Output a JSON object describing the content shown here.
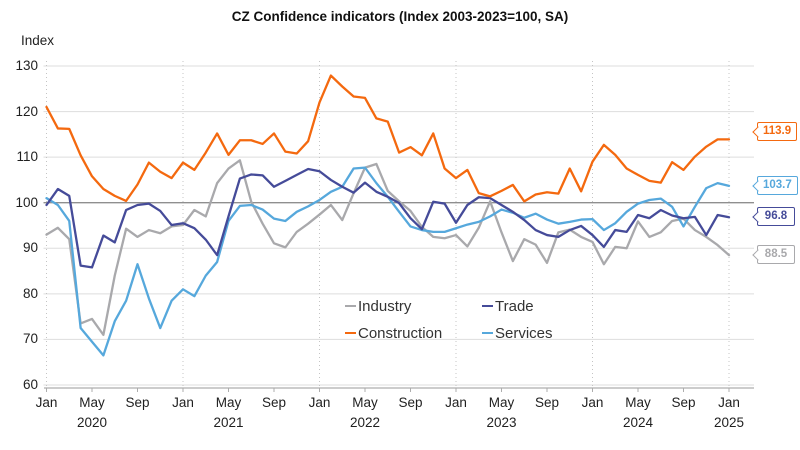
{
  "title": "CZ Confidence indicators (Index 2003-2023=100, SA)",
  "y_axis_label": "Index",
  "chart_data": {
    "type": "line",
    "x_range": "Jan 2020 - Jan 2025 (monthly, 61 points)",
    "x_tick_labels": [
      "Jan",
      "May",
      "Sep",
      "Jan",
      "May",
      "Sep",
      "Jan",
      "May",
      "Sep",
      "Jan",
      "May",
      "Sep",
      "Jan",
      "May",
      "Sep",
      "Jan"
    ],
    "years": [
      "2020",
      "2021",
      "2022",
      "2023",
      "2024",
      "2025"
    ],
    "y_ticks": [
      60,
      70,
      80,
      90,
      100,
      110,
      120,
      130
    ],
    "ylim": [
      60,
      130
    ],
    "reference_line": 100,
    "grid": "horizontal solid + vertical dotted at each January",
    "legend_position": "inside bottom center, 2 columns",
    "series": [
      {
        "name": "Industry",
        "color": "#A9A9AC",
        "end_label": "88.5",
        "values": [
          93,
          94.5,
          92,
          73.5,
          74.5,
          71,
          84,
          94.3,
          92.5,
          94,
          93.3,
          94.8,
          95.1,
          98.4,
          97,
          104.3,
          107.5,
          109.3,
          100.2,
          95.4,
          91.1,
          90.2,
          93.6,
          95.4,
          97.4,
          99.5,
          96.2,
          102.1,
          107.7,
          108.5,
          102.6,
          100.3,
          98.2,
          94.7,
          92.5,
          92.2,
          92.9,
          90.4,
          94.5,
          100.3,
          93.5,
          87.2,
          92,
          90.8,
          86.8,
          93.5,
          94.1,
          92.5,
          91.4,
          86.5,
          90.3,
          90,
          95.9,
          92.5,
          93.5,
          96,
          96.5,
          94,
          92.5,
          90.7,
          88.5
        ]
      },
      {
        "name": "Construction",
        "color": "#F4690F",
        "end_label": "113.9",
        "values": [
          121,
          116.3,
          116.2,
          110.4,
          105.8,
          103,
          101.5,
          100.4,
          104,
          108.8,
          106.8,
          105.4,
          108.8,
          107.2,
          111,
          115.2,
          110.5,
          113.7,
          113.7,
          112.9,
          115.2,
          111.2,
          110.8,
          113.5,
          122,
          127.9,
          125.5,
          123.3,
          123,
          118.5,
          117.8,
          111,
          112.2,
          110.4,
          115.2,
          107.5,
          105.4,
          107.2,
          102.1,
          101.4,
          102.6,
          103.9,
          100.3,
          101.8,
          102.3,
          102,
          107.5,
          102.5,
          109,
          112.7,
          110.5,
          107.5,
          106.1,
          104.8,
          104.4,
          108.9,
          107.2,
          110.1,
          112.3,
          113.9,
          113.9
        ]
      },
      {
        "name": "Trade",
        "color": "#454B99",
        "end_label": "96.8",
        "values": [
          99.5,
          103,
          101.5,
          86.2,
          85.8,
          92.8,
          91.3,
          98.4,
          99.5,
          99.8,
          98.2,
          95.1,
          95.5,
          94.4,
          91.9,
          88.5,
          97,
          105.3,
          106.2,
          106,
          103.5,
          104.8,
          106.1,
          107.4,
          106.9,
          105,
          103.5,
          102.2,
          104.4,
          102.4,
          101.3,
          99.9,
          96.6,
          94.2,
          100.2,
          99.8,
          95.6,
          99.5,
          101.2,
          101,
          99.5,
          98,
          96.2,
          94,
          92.9,
          92.5,
          94,
          94.9,
          92.9,
          90.3,
          94,
          93.6,
          97.3,
          96.6,
          98.4,
          97.2,
          96.6,
          96.9,
          92.9,
          97.3,
          96.8
        ]
      },
      {
        "name": "Services",
        "color": "#56A8DC",
        "end_label": "103.7",
        "values": [
          101,
          99.5,
          96,
          72.5,
          69.5,
          66.5,
          74,
          78.5,
          86.5,
          79,
          72.5,
          78.5,
          81,
          79.5,
          84,
          87,
          96,
          99.3,
          99.5,
          98.5,
          96.5,
          96,
          98,
          99.2,
          100.6,
          102.4,
          103.5,
          107.5,
          107.7,
          104.3,
          101.3,
          98,
          94.8,
          94,
          93.6,
          93.6,
          94.4,
          95.2,
          95.8,
          97,
          98.5,
          97.8,
          96.7,
          97.6,
          96.3,
          95.4,
          95.8,
          96.3,
          96.4,
          94,
          95.5,
          98,
          99.8,
          100.6,
          100.9,
          99.1,
          94.8,
          99.1,
          103.2,
          104.3,
          103.7
        ]
      }
    ]
  }
}
